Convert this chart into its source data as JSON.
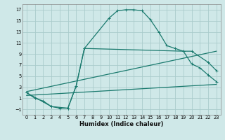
{
  "xlabel": "Humidex (Indice chaleur)",
  "bg_color": "#cfe8e8",
  "grid_color": "#aacccc",
  "line_color": "#1a7a6e",
  "xlim": [
    -0.5,
    23.5
  ],
  "ylim": [
    -2,
    18
  ],
  "xticks": [
    0,
    1,
    2,
    3,
    4,
    5,
    6,
    7,
    8,
    9,
    10,
    11,
    12,
    13,
    14,
    15,
    16,
    17,
    18,
    19,
    20,
    21,
    22,
    23
  ],
  "yticks": [
    -1,
    1,
    3,
    5,
    7,
    9,
    11,
    13,
    15,
    17
  ],
  "line1_x": [
    0,
    1,
    2,
    3,
    4,
    5,
    6,
    7,
    10,
    11,
    12,
    13,
    14,
    15,
    16,
    17,
    18,
    19,
    20,
    21,
    22,
    23
  ],
  "line1_y": [
    2,
    1,
    0.5,
    -0.5,
    -0.8,
    -0.8,
    3.2,
    10,
    15.5,
    16.8,
    17,
    17,
    16.8,
    15.2,
    13,
    10.5,
    10.0,
    9.5,
    7.2,
    6.5,
    5.2,
    4
  ],
  "line2_x": [
    0,
    3,
    5,
    6,
    7,
    19,
    20,
    22,
    23
  ],
  "line2_y": [
    2,
    -0.5,
    -0.8,
    3.2,
    10,
    9.5,
    9.5,
    7.5,
    6.0
  ],
  "line3_x": [
    0,
    23
  ],
  "line3_y": [
    1.5,
    3.5
  ],
  "line4_x": [
    0,
    23
  ],
  "line4_y": [
    2.2,
    9.5
  ]
}
